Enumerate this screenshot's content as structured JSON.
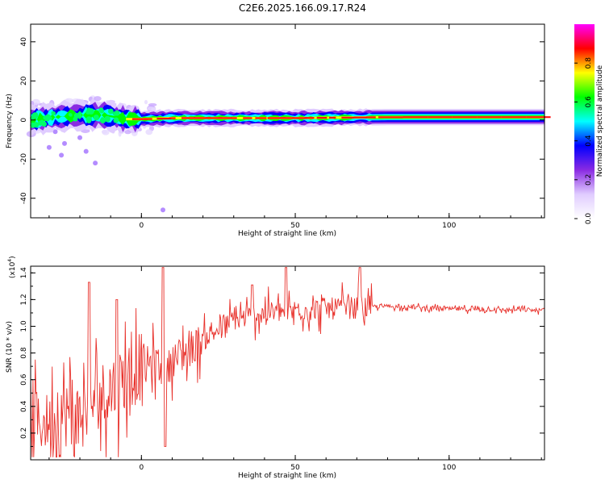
{
  "title": "C2E6.2025.166.09.17.R24",
  "chart_data": [
    {
      "type": "heatmap",
      "xlabel": "Height of straight line (km)",
      "ylabel": "Frequency (Hz)",
      "xlim": [
        -36,
        131
      ],
      "ylim": [
        -50,
        49
      ],
      "x_ticks": [
        0,
        50,
        100
      ],
      "y_ticks": [
        -40,
        -20,
        0,
        20,
        40
      ],
      "colorbar": {
        "label": "Normalized spectral amplitude",
        "range": [
          0,
          1
        ],
        "ticks": [
          "0.0",
          "0.2",
          "0.4",
          "0.6",
          "0.8"
        ],
        "colors": [
          "#ffffff",
          "#e0ccff",
          "#8a2be2",
          "#0000ff",
          "#00ffff",
          "#00ff00",
          "#ffff00",
          "#ff0000",
          "#ff00ff"
        ]
      },
      "ridge": {
        "description_frequency_hz": [
          [
            -36,
            0
          ],
          [
            -28,
            1.5
          ],
          [
            -20,
            2.5
          ],
          [
            -12,
            2.5
          ],
          [
            -5,
            0.5
          ],
          [
            0,
            0.5
          ],
          [
            10,
            1
          ],
          [
            50,
            1
          ],
          [
            80,
            1.5
          ],
          [
            131,
            1.5
          ]
        ]
      },
      "scatter_low": [
        [
          -28,
          -6
        ],
        [
          -25,
          -12
        ],
        [
          -30,
          -14
        ],
        [
          -20,
          -9
        ],
        [
          -15,
          -22
        ],
        [
          -18,
          -16
        ],
        [
          -26,
          -18
        ],
        [
          -10,
          -4
        ],
        [
          7,
          -46
        ]
      ]
    },
    {
      "type": "line",
      "xlabel": "Height of straight line (km)",
      "ylabel": "SNR (10 * v/v)",
      "y_exponent_label": "(x10",
      "y_exponent": "4",
      "xlim": [
        -36,
        131
      ],
      "ylim": [
        0.0,
        1.45
      ],
      "x_ticks": [
        0,
        50,
        100
      ],
      "y_ticks": [
        "0.2",
        "0.4",
        "0.6",
        "0.8",
        "1.0",
        "1.2",
        "1.4"
      ],
      "color": "#e8302a",
      "trend": [
        [
          -36,
          0.25
        ],
        [
          -20,
          0.35
        ],
        [
          -10,
          0.55
        ],
        [
          0,
          0.7
        ],
        [
          5,
          0.75
        ],
        [
          7,
          0.6
        ],
        [
          10,
          0.75
        ],
        [
          20,
          0.9
        ],
        [
          30,
          1.05
        ],
        [
          40,
          1.1
        ],
        [
          50,
          1.12
        ],
        [
          60,
          1.13
        ],
        [
          70,
          1.14
        ],
        [
          80,
          1.15
        ],
        [
          100,
          1.13
        ],
        [
          131,
          1.12
        ]
      ],
      "spikes": [
        [
          -17,
          1.33
        ],
        [
          -8,
          1.2
        ],
        [
          7,
          1.44
        ],
        [
          7.8,
          0.1
        ],
        [
          36,
          1.31
        ],
        [
          47,
          1.44
        ],
        [
          71,
          1.44
        ]
      ]
    }
  ]
}
